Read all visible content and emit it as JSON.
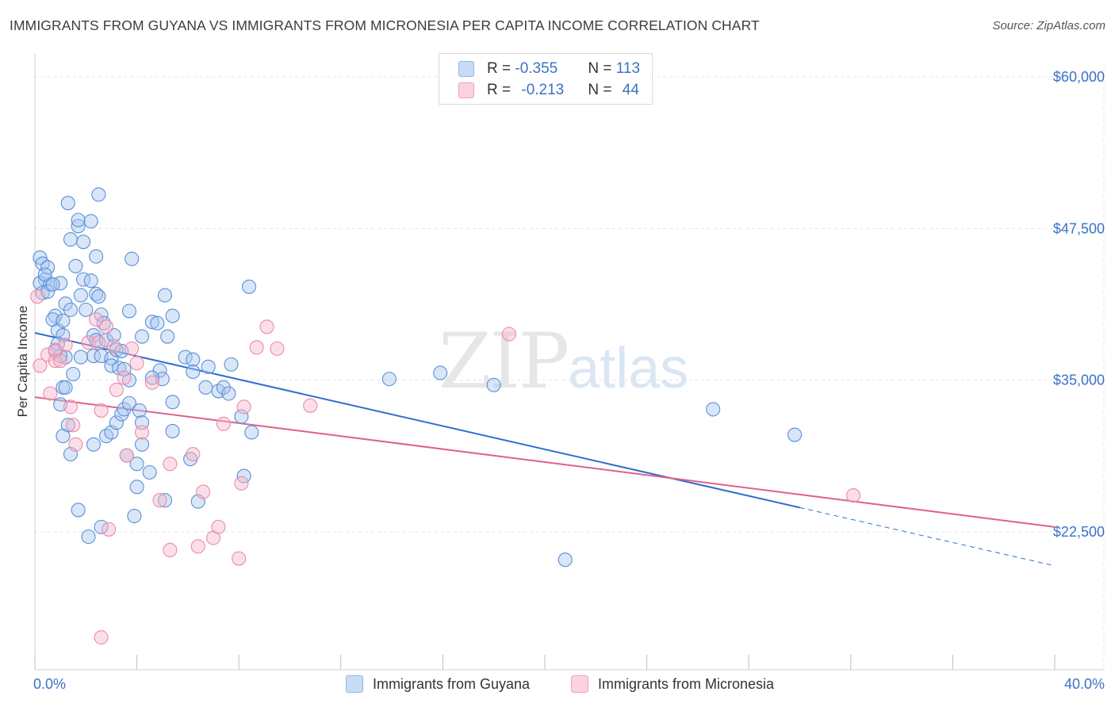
{
  "title": "IMMIGRANTS FROM GUYANA VS IMMIGRANTS FROM MICRONESIA PER CAPITA INCOME CORRELATION CHART",
  "source": "Source: ZipAtlas.com",
  "watermark": {
    "zip": "ZIP",
    "atlas": "atlas"
  },
  "legend": {
    "rows": [
      {
        "r_label": "R = ",
        "r_value": "-0.355",
        "n_label": "N = ",
        "n_value": "113",
        "color": "#a9c7f0"
      },
      {
        "r_label": "R = ",
        "r_value": "-0.213",
        "n_label": "N = ",
        "n_value": "44",
        "color": "#f6b8cc"
      }
    ]
  },
  "bottom_legend": [
    {
      "label": "Immigrants from Guyana",
      "color": "#a9c7f0"
    },
    {
      "label": "Immigrants from Micronesia",
      "color": "#f6b8cc"
    }
  ],
  "chart_data": {
    "type": "scatter",
    "ylabel": "Per Capita Income",
    "xlim": [
      0,
      40
    ],
    "ylim": [
      12500,
      62500
    ],
    "x_tick_labels": [
      "0.0%",
      "40.0%"
    ],
    "y_ticks": [
      22500,
      35000,
      47500,
      60000
    ],
    "y_tick_labels": [
      "$22,500",
      "$35,000",
      "$47,500",
      "$60,000"
    ],
    "grid": true,
    "series": [
      {
        "name": "Immigrants from Guyana",
        "color": "#5b8fd6",
        "fill": "#a9c7f0",
        "trend": {
          "x0": 0.0,
          "y0": 38900,
          "x1": 30.0,
          "y1": 24500,
          "dash_to_x": 40.0,
          "dash_to_y": 19700,
          "color": "#2f6fce"
        },
        "points": [
          [
            0.2,
            45100
          ],
          [
            0.3,
            44600
          ],
          [
            0.4,
            43300
          ],
          [
            0.2,
            43000
          ],
          [
            0.5,
            44300
          ],
          [
            0.3,
            42200
          ],
          [
            0.6,
            42900
          ],
          [
            0.4,
            43700
          ],
          [
            0.8,
            40300
          ],
          [
            0.7,
            40000
          ],
          [
            0.9,
            39100
          ],
          [
            1.0,
            43000
          ],
          [
            1.1,
            38700
          ],
          [
            1.2,
            41300
          ],
          [
            0.9,
            38000
          ],
          [
            1.4,
            40800
          ],
          [
            1.2,
            36900
          ],
          [
            1.0,
            37000
          ],
          [
            1.5,
            35500
          ],
          [
            1.1,
            34400
          ],
          [
            1.2,
            34400
          ],
          [
            1.0,
            33000
          ],
          [
            1.3,
            31300
          ],
          [
            1.1,
            30400
          ],
          [
            1.4,
            28900
          ],
          [
            1.7,
            24300
          ],
          [
            2.1,
            22100
          ],
          [
            1.3,
            49600
          ],
          [
            2.5,
            50300
          ],
          [
            1.7,
            47700
          ],
          [
            1.7,
            48200
          ],
          [
            2.2,
            48100
          ],
          [
            1.4,
            46600
          ],
          [
            1.9,
            46400
          ],
          [
            2.4,
            45200
          ],
          [
            1.6,
            44400
          ],
          [
            1.9,
            43300
          ],
          [
            2.2,
            43200
          ],
          [
            1.8,
            42000
          ],
          [
            2.4,
            42100
          ],
          [
            2.5,
            41900
          ],
          [
            2.0,
            40800
          ],
          [
            2.3,
            38700
          ],
          [
            2.4,
            38300
          ],
          [
            2.6,
            40400
          ],
          [
            2.7,
            39700
          ],
          [
            2.8,
            38300
          ],
          [
            2.3,
            37000
          ],
          [
            2.6,
            37000
          ],
          [
            3.0,
            36800
          ],
          [
            3.2,
            37500
          ],
          [
            3.4,
            37400
          ],
          [
            3.0,
            36200
          ],
          [
            3.3,
            36000
          ],
          [
            3.7,
            35000
          ],
          [
            3.5,
            35900
          ],
          [
            2.3,
            29700
          ],
          [
            2.8,
            30400
          ],
          [
            3.0,
            30700
          ],
          [
            3.2,
            31500
          ],
          [
            3.4,
            32200
          ],
          [
            3.5,
            32600
          ],
          [
            3.7,
            33100
          ],
          [
            4.1,
            32500
          ],
          [
            4.2,
            31500
          ],
          [
            4.2,
            29700
          ],
          [
            3.6,
            28800
          ],
          [
            4.0,
            28100
          ],
          [
            4.0,
            26200
          ],
          [
            4.5,
            27400
          ],
          [
            2.6,
            22900
          ],
          [
            3.9,
            23800
          ],
          [
            5.1,
            25100
          ],
          [
            3.8,
            45000
          ],
          [
            3.7,
            40700
          ],
          [
            4.2,
            38600
          ],
          [
            4.6,
            39800
          ],
          [
            4.8,
            39700
          ],
          [
            5.2,
            38600
          ],
          [
            4.9,
            35800
          ],
          [
            5.0,
            35100
          ],
          [
            5.4,
            33200
          ],
          [
            5.4,
            30800
          ],
          [
            5.1,
            42000
          ],
          [
            5.4,
            40300
          ],
          [
            5.9,
            36900
          ],
          [
            6.2,
            36700
          ],
          [
            6.2,
            35700
          ],
          [
            6.1,
            28500
          ],
          [
            6.4,
            25000
          ],
          [
            6.7,
            34400
          ],
          [
            6.8,
            36100
          ],
          [
            7.2,
            34100
          ],
          [
            7.4,
            34400
          ],
          [
            7.6,
            33900
          ],
          [
            7.7,
            36300
          ],
          [
            8.1,
            32000
          ],
          [
            8.2,
            27100
          ],
          [
            8.5,
            30700
          ],
          [
            8.4,
            42700
          ],
          [
            13.9,
            35100
          ],
          [
            15.9,
            35600
          ],
          [
            18.0,
            34600
          ],
          [
            20.8,
            20200
          ],
          [
            26.6,
            32600
          ],
          [
            29.8,
            30500
          ],
          [
            0.5,
            42300
          ],
          [
            0.7,
            42900
          ],
          [
            1.1,
            39900
          ],
          [
            0.8,
            37400
          ],
          [
            1.8,
            36900
          ],
          [
            3.1,
            38700
          ],
          [
            4.6,
            35200
          ]
        ]
      },
      {
        "name": "Immigrants from Micronesia",
        "color": "#ee8aa8",
        "fill": "#f6b8cc",
        "trend": {
          "x0": 0.0,
          "y0": 33600,
          "x1": 40.0,
          "y1": 22900,
          "color": "#e0608a"
        },
        "points": [
          [
            0.1,
            41900
          ],
          [
            0.2,
            36200
          ],
          [
            0.5,
            37100
          ],
          [
            0.6,
            33900
          ],
          [
            0.8,
            37500
          ],
          [
            0.8,
            36600
          ],
          [
            1.0,
            36600
          ],
          [
            1.2,
            37900
          ],
          [
            1.4,
            32800
          ],
          [
            1.5,
            31300
          ],
          [
            1.6,
            29700
          ],
          [
            2.1,
            38100
          ],
          [
            2.4,
            40000
          ],
          [
            2.5,
            38100
          ],
          [
            2.6,
            32500
          ],
          [
            2.8,
            39400
          ],
          [
            2.9,
            22700
          ],
          [
            3.1,
            37800
          ],
          [
            3.2,
            34200
          ],
          [
            3.5,
            35200
          ],
          [
            3.6,
            28800
          ],
          [
            3.8,
            37600
          ],
          [
            4.0,
            36400
          ],
          [
            4.2,
            30700
          ],
          [
            4.6,
            34800
          ],
          [
            4.9,
            25100
          ],
          [
            5.3,
            28100
          ],
          [
            5.3,
            21000
          ],
          [
            6.2,
            28900
          ],
          [
            6.6,
            25800
          ],
          [
            6.4,
            21300
          ],
          [
            7.0,
            22000
          ],
          [
            7.2,
            22900
          ],
          [
            7.4,
            31400
          ],
          [
            8.0,
            20300
          ],
          [
            8.1,
            26500
          ],
          [
            8.2,
            32800
          ],
          [
            8.7,
            37700
          ],
          [
            9.1,
            39400
          ],
          [
            9.5,
            37600
          ],
          [
            10.8,
            32900
          ],
          [
            18.6,
            38800
          ],
          [
            32.1,
            25500
          ],
          [
            2.6,
            13800
          ]
        ]
      }
    ]
  }
}
